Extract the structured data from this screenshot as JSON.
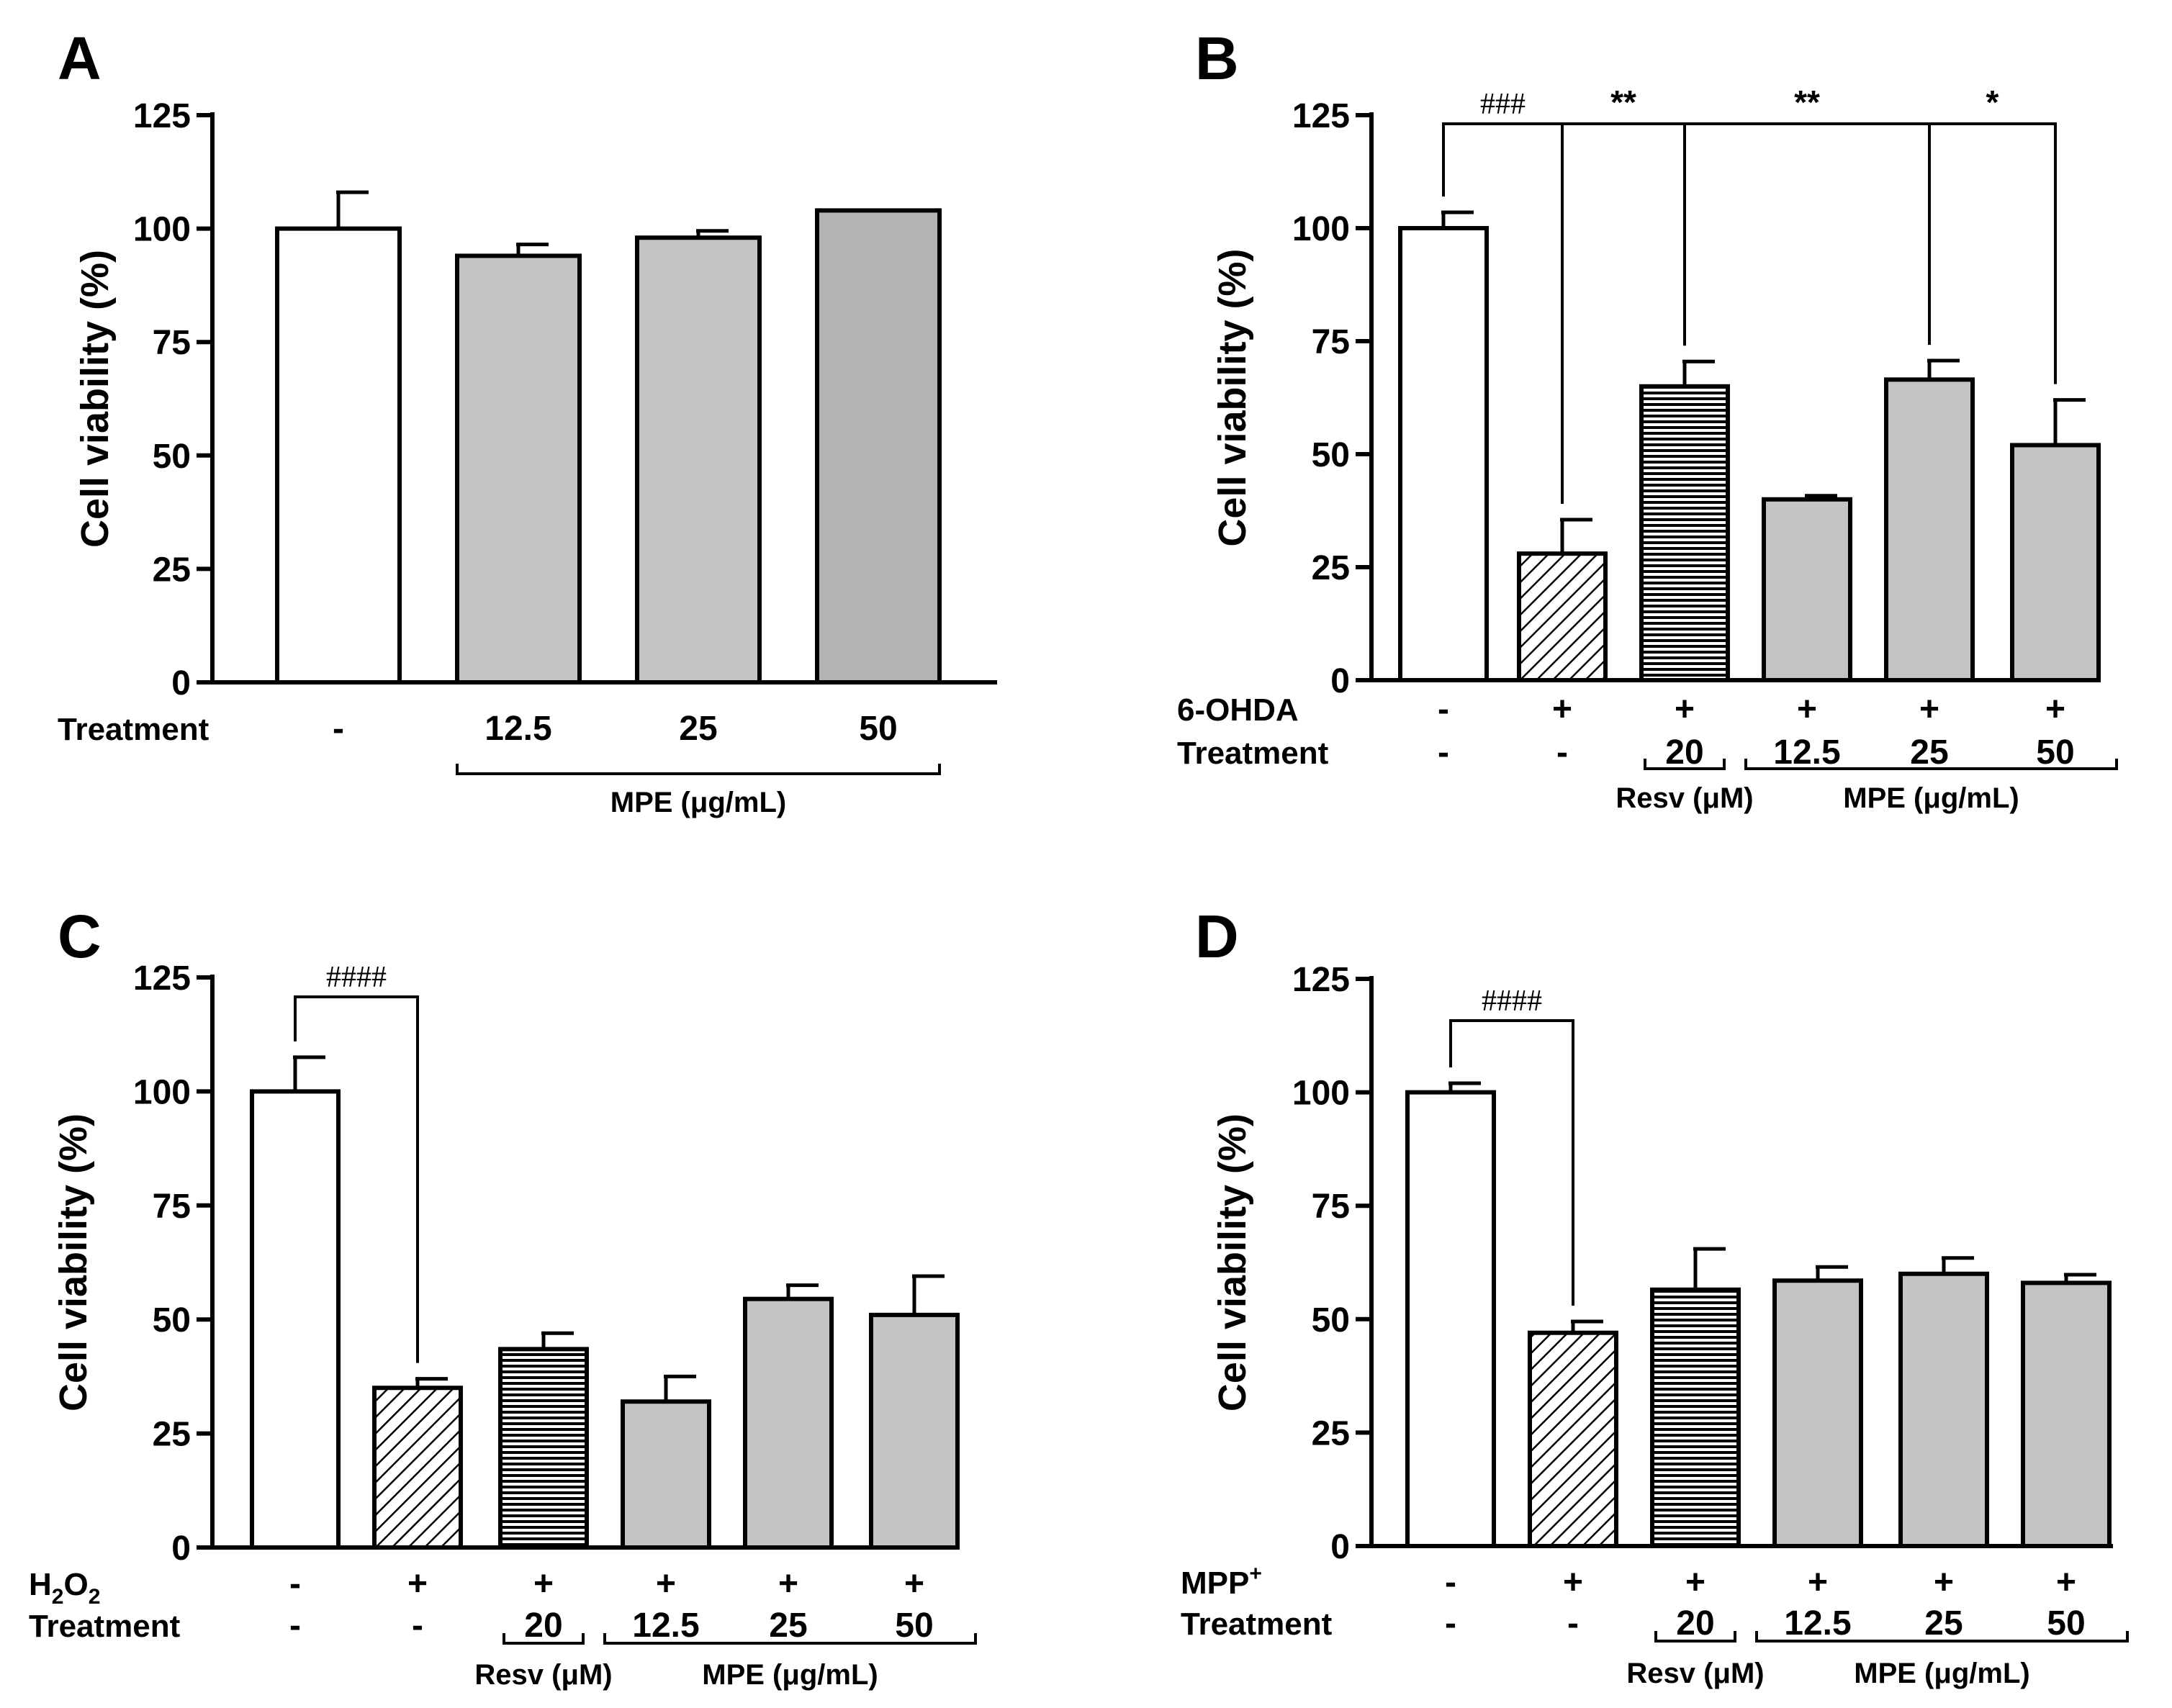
{
  "figure": {
    "description_free": true,
    "colors": {
      "control_fill": "#ffffff",
      "mpe_fill": "#c4c4c4",
      "mpe_fill_A50": "#b3b3b3",
      "resv_fill": "#5a5a5a",
      "stroke": "#000000"
    }
  },
  "chart_data": [
    {
      "type": "bar",
      "panel": "A",
      "title": "",
      "ylabel": "Cell viability (%)",
      "ylim": [
        0,
        125
      ],
      "yticks": [
        "0",
        "25",
        "50",
        "75",
        "100",
        "125"
      ],
      "row_labels": [
        "Treatment"
      ],
      "categories": [
        "-",
        "12.5",
        "25",
        "50"
      ],
      "rows": [
        [
          "-",
          "12.5",
          "25",
          "50"
        ]
      ],
      "values": [
        100,
        94,
        98,
        104
      ],
      "errors": [
        8,
        2.5,
        1.5,
        0
      ],
      "fills": [
        "white",
        "mpe",
        "mpe",
        "mpe_dark"
      ],
      "groups": [
        {
          "label": "MPE (μg/mL)",
          "from": 1,
          "to": 3
        }
      ],
      "significance": []
    },
    {
      "type": "bar",
      "panel": "B",
      "title": "",
      "ylabel": "Cell viability (%)",
      "ylim": [
        0,
        125
      ],
      "yticks": [
        "0",
        "25",
        "50",
        "75",
        "100",
        "125"
      ],
      "row_labels": [
        "6-OHDA",
        "Treatment"
      ],
      "categories": [
        "-",
        "-",
        "20",
        "12.5",
        "25",
        "50"
      ],
      "rows": [
        [
          "-",
          "+",
          "+",
          "+",
          "+",
          "+"
        ],
        [
          "-",
          "-",
          "20",
          "12.5",
          "25",
          "50"
        ]
      ],
      "values": [
        100,
        28,
        65,
        40,
        66.5,
        52
      ],
      "errors": [
        3.5,
        7.5,
        5.5,
        0.8,
        4.2,
        10
      ],
      "fills": [
        "white",
        "hatch",
        "resv",
        "mpe",
        "mpe",
        "mpe"
      ],
      "groups": [
        {
          "label": "Resv (μM)",
          "from": 2,
          "to": 2
        },
        {
          "label": "MPE (μg/mL)",
          "from": 3,
          "to": 5
        }
      ],
      "significance": [
        {
          "from": 0,
          "to": 1,
          "label": "###"
        },
        {
          "from": 1,
          "to": 2,
          "label": "**"
        },
        {
          "from": 2,
          "to": 4,
          "label": "**"
        },
        {
          "from": 4,
          "to": 5,
          "label": "*"
        }
      ]
    },
    {
      "type": "bar",
      "panel": "C",
      "title": "",
      "ylabel": "Cell viability (%)",
      "ylim": [
        0,
        125
      ],
      "yticks": [
        "0",
        "25",
        "50",
        "75",
        "100",
        "125"
      ],
      "row_labels": [
        "H",
        "Treatment"
      ],
      "row_label_formula": {
        "base": "H",
        "sub1": "2",
        "mid": "O",
        "sub2": "2"
      },
      "categories": [
        "-",
        "-",
        "20",
        "12.5",
        "25",
        "50"
      ],
      "rows": [
        [
          "-",
          "+",
          "+",
          "+",
          "+",
          "+"
        ],
        [
          "-",
          "-",
          "20",
          "12.5",
          "25",
          "50"
        ]
      ],
      "values": [
        100,
        35,
        43.5,
        32,
        54.5,
        51
      ],
      "errors": [
        7.5,
        2,
        3.5,
        5.5,
        3,
        8.5
      ],
      "fills": [
        "white",
        "hatch",
        "resv",
        "mpe",
        "mpe",
        "mpe"
      ],
      "groups": [
        {
          "label": "Resv (μM)",
          "from": 2,
          "to": 2
        },
        {
          "label": "MPE (μg/mL)",
          "from": 3,
          "to": 5
        }
      ],
      "significance": [
        {
          "from": 0,
          "to": 1,
          "label": "####"
        }
      ]
    },
    {
      "type": "bar",
      "panel": "D",
      "title": "",
      "ylabel": "Cell viability (%)",
      "ylim": [
        0,
        125
      ],
      "yticks": [
        "0",
        "25",
        "50",
        "75",
        "100",
        "125"
      ],
      "row_labels": [
        "MPP",
        "Treatment"
      ],
      "row_label_sup": "+",
      "categories": [
        "-",
        "-",
        "20",
        "12.5",
        "25",
        "50"
      ],
      "rows": [
        [
          "-",
          "+",
          "+",
          "+",
          "+",
          "+"
        ],
        [
          "-",
          "-",
          "20",
          "12.5",
          "25",
          "50"
        ]
      ],
      "values": [
        100,
        47,
        56.5,
        58.5,
        60,
        58
      ],
      "errors": [
        2,
        2.5,
        9,
        3,
        3.5,
        1.8
      ],
      "fills": [
        "white",
        "hatch",
        "resv",
        "mpe",
        "mpe",
        "mpe"
      ],
      "groups": [
        {
          "label": "Resv (μM)",
          "from": 2,
          "to": 2
        },
        {
          "label": "MPE (μg/mL)",
          "from": 3,
          "to": 5
        }
      ],
      "significance": [
        {
          "from": 0,
          "to": 1,
          "label": "####"
        }
      ]
    }
  ]
}
